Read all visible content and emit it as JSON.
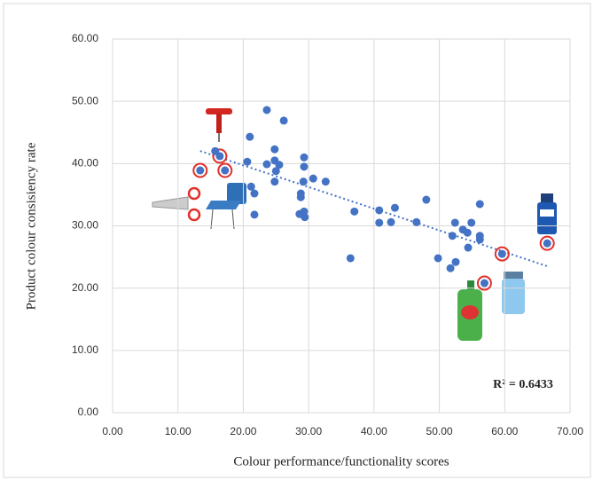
{
  "chart_data": {
    "type": "scatter",
    "x_label": "Colour performance/functionality scores",
    "y_label": "Product colour consisiency rate",
    "annotation": "R² = 0.6433",
    "color": "#4472c4",
    "highlight_color": "#e0302a",
    "grid": true,
    "trendline": true,
    "xlim": [
      0,
      70
    ],
    "ylim": [
      0,
      60
    ],
    "xticks": [
      {
        "value": 0,
        "label": "0.00"
      },
      {
        "value": 10,
        "label": "10.00"
      },
      {
        "value": 20,
        "label": "20.00"
      },
      {
        "value": 30,
        "label": "30.00"
      },
      {
        "value": 40,
        "label": "40.00"
      },
      {
        "value": 50,
        "label": "50.00"
      },
      {
        "value": 60,
        "label": "60.00"
      },
      {
        "value": 70,
        "label": "70.00"
      }
    ],
    "yticks": [
      {
        "value": 0,
        "label": "0.00"
      },
      {
        "value": 10,
        "label": "10.00"
      },
      {
        "value": 20,
        "label": "20.00"
      },
      {
        "value": 30,
        "label": "30.00"
      },
      {
        "value": 40,
        "label": "40.00"
      },
      {
        "value": 50,
        "label": "50.00"
      },
      {
        "value": 60,
        "label": "60.00"
      }
    ],
    "x": [
      13.4,
      16.4,
      17.2,
      15.7,
      21.0,
      20.6,
      21.2,
      21.7,
      21.7,
      23.6,
      23.6,
      24.8,
      24.8,
      25.5,
      25.0,
      24.8,
      26.2,
      29.3,
      29.3,
      29.2,
      28.8,
      28.8,
      28.6,
      29.3,
      29.4,
      30.7,
      32.6,
      36.4,
      37.0,
      40.8,
      40.8,
      42.6,
      43.2,
      46.5,
      48.0,
      49.8,
      51.7,
      52.0,
      52.4,
      52.5,
      53.6,
      54.3,
      54.9,
      54.4,
      56.2,
      56.2,
      56.2,
      56.9,
      59.6,
      66.5
    ],
    "series": [
      {
        "values": [
          38.9,
          41.2,
          38.9,
          42.0,
          44.3,
          40.3,
          36.3,
          35.2,
          31.8,
          48.6,
          39.9,
          42.3,
          40.5,
          39.8,
          38.8,
          37.1,
          46.9,
          41.0,
          39.5,
          37.1,
          35.2,
          34.6,
          31.9,
          32.3,
          31.4,
          37.6,
          37.1,
          24.8,
          32.3,
          32.5,
          30.5,
          30.6,
          32.9,
          30.6,
          34.2,
          24.8,
          23.2,
          28.4,
          30.5,
          24.2,
          29.4,
          28.9,
          30.5,
          26.5,
          33.5,
          28.4,
          27.8,
          20.8,
          25.5,
          27.2
        ]
      }
    ],
    "highlighted": [
      0,
      1,
      2,
      47,
      48,
      49
    ]
  }
}
